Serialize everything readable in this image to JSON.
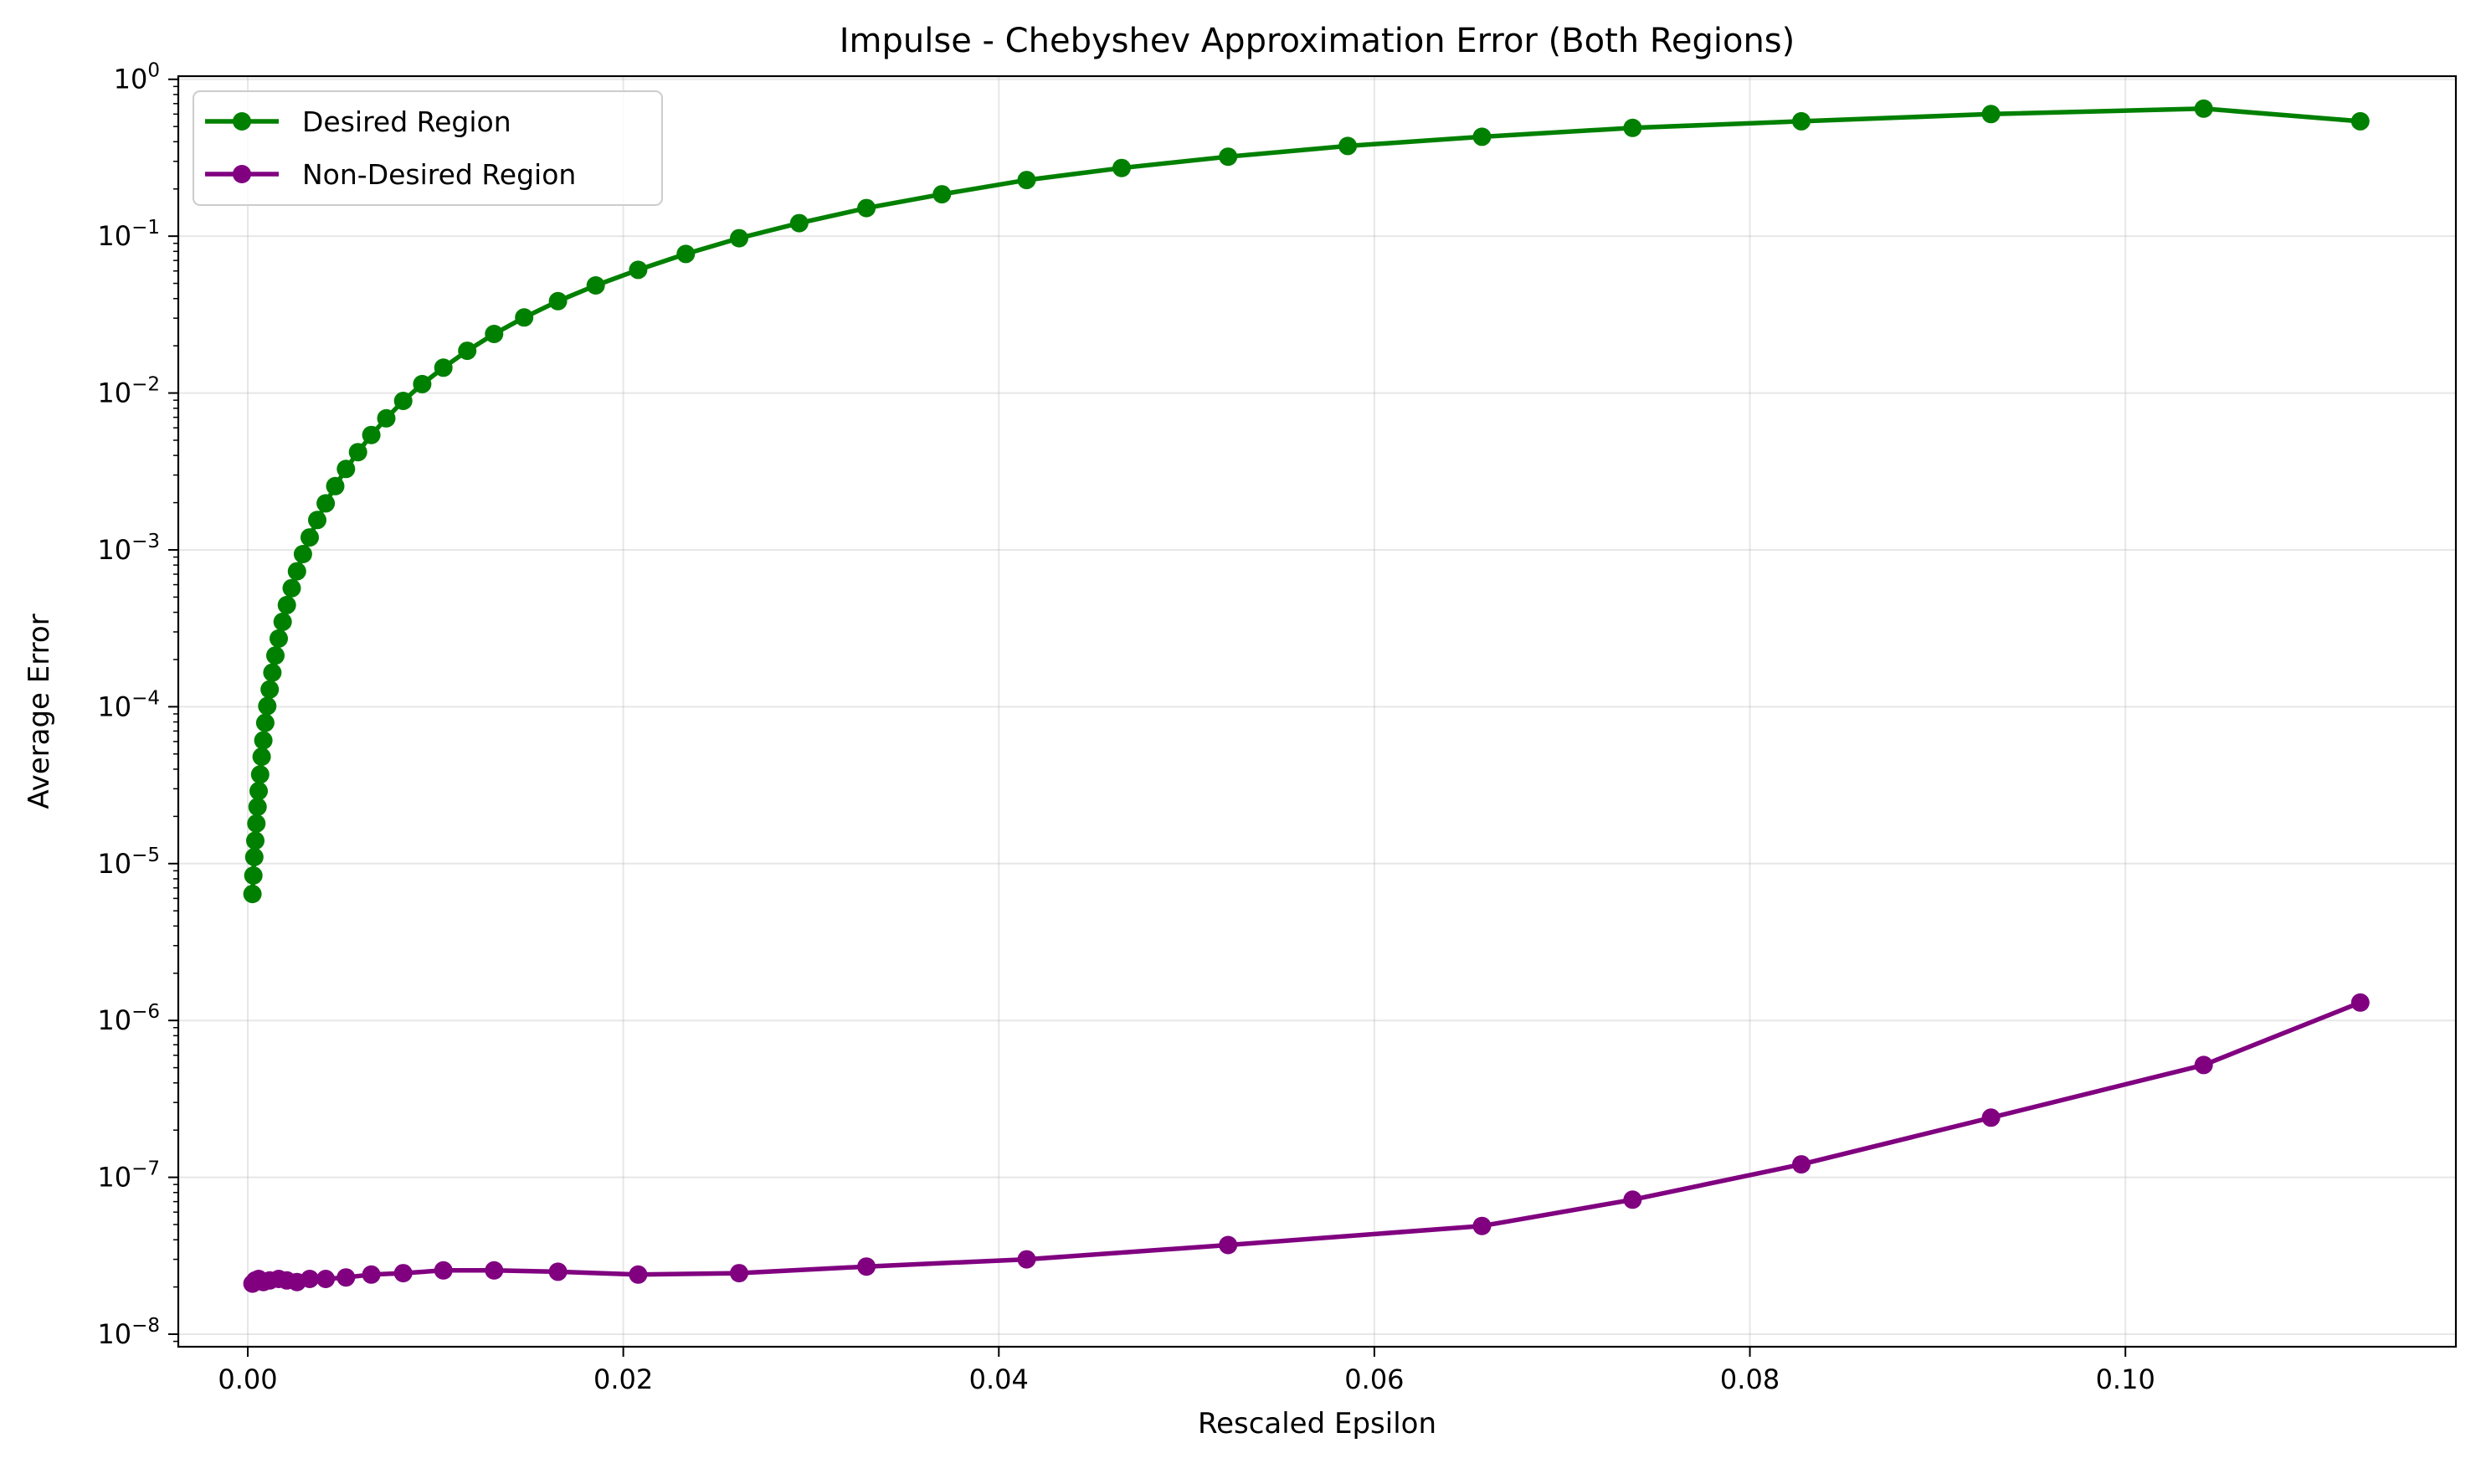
{
  "chart_data": {
    "type": "line",
    "title": "Impulse - Chebyshev Approximation Error (Both Regions)",
    "xlabel": "Rescaled Epsilon",
    "ylabel": "Average Error",
    "xlim": [
      -0.0037,
      0.1176
    ],
    "ylim_log10": [
      -8.08,
      0.02
    ],
    "y_scale": "log",
    "grid": true,
    "legend_position": "top-left",
    "x_ticks": [
      {
        "value": 0.0,
        "label": "0.00"
      },
      {
        "value": 0.02,
        "label": "0.02"
      },
      {
        "value": 0.04,
        "label": "0.04"
      },
      {
        "value": 0.06,
        "label": "0.06"
      },
      {
        "value": 0.08,
        "label": "0.08"
      },
      {
        "value": 0.1,
        "label": "0.10"
      }
    ],
    "y_ticks": [
      {
        "exp": 0,
        "base": "10",
        "sup": "0"
      },
      {
        "exp": -1,
        "base": "10",
        "sup": "−1"
      },
      {
        "exp": -2,
        "base": "10",
        "sup": "−2"
      },
      {
        "exp": -3,
        "base": "10",
        "sup": "−3"
      },
      {
        "exp": -4,
        "base": "10",
        "sup": "−4"
      },
      {
        "exp": -5,
        "base": "10",
        "sup": "−5"
      },
      {
        "exp": -6,
        "base": "10",
        "sup": "−6"
      },
      {
        "exp": -7,
        "base": "10",
        "sup": "−7"
      },
      {
        "exp": -8,
        "base": "10",
        "sup": "−8"
      }
    ],
    "series": [
      {
        "name": "Desired Region",
        "color": "#008000",
        "points": [
          [
            0.00025,
            6.4e-06
          ],
          [
            0.0003,
            8.4e-06
          ],
          [
            0.00035,
            1.1e-05
          ],
          [
            0.0004,
            1.4e-05
          ],
          [
            0.00046,
            1.8e-05
          ],
          [
            0.00052,
            2.3e-05
          ],
          [
            0.00058,
            2.9e-05
          ],
          [
            0.00066,
            3.7e-05
          ],
          [
            0.00074,
            4.8e-05
          ],
          [
            0.00083,
            6.1e-05
          ],
          [
            0.00093,
            7.9e-05
          ],
          [
            0.00104,
            0.000101
          ],
          [
            0.00117,
            0.000129
          ],
          [
            0.00131,
            0.000165
          ],
          [
            0.00147,
            0.000212
          ],
          [
            0.00165,
            0.000272
          ],
          [
            0.00186,
            0.000348
          ],
          [
            0.00208,
            0.000445
          ],
          [
            0.00234,
            0.00057
          ],
          [
            0.00262,
            0.00073
          ],
          [
            0.00294,
            0.00094
          ],
          [
            0.0033,
            0.0012
          ],
          [
            0.0037,
            0.00155
          ],
          [
            0.00415,
            0.00198
          ],
          [
            0.00466,
            0.00255
          ],
          [
            0.00523,
            0.00328
          ],
          [
            0.00587,
            0.0042
          ],
          [
            0.00658,
            0.0054
          ],
          [
            0.00738,
            0.0069
          ],
          [
            0.00828,
            0.0089
          ],
          [
            0.00929,
            0.0114
          ],
          [
            0.01042,
            0.0145
          ],
          [
            0.01169,
            0.0186
          ],
          [
            0.01312,
            0.0238
          ],
          [
            0.01472,
            0.0303
          ],
          [
            0.01652,
            0.0385
          ],
          [
            0.01853,
            0.0485
          ],
          [
            0.02079,
            0.061
          ],
          [
            0.02333,
            0.077
          ],
          [
            0.02617,
            0.097
          ],
          [
            0.02937,
            0.121
          ],
          [
            0.03295,
            0.151
          ],
          [
            0.03697,
            0.185
          ],
          [
            0.04148,
            0.228
          ],
          [
            0.04654,
            0.272
          ],
          [
            0.05221,
            0.321
          ],
          [
            0.05858,
            0.376
          ],
          [
            0.06573,
            0.43
          ],
          [
            0.07375,
            0.49
          ],
          [
            0.08274,
            0.54
          ],
          [
            0.09284,
            0.6
          ],
          [
            0.10417,
            0.65
          ],
          [
            0.11251,
            0.54
          ]
        ]
      },
      {
        "name": "Non-Desired Region",
        "color": "#800080",
        "points": [
          [
            0.00025,
            2.1e-08
          ],
          [
            0.0004,
            2.2e-08
          ],
          [
            0.00058,
            2.25e-08
          ],
          [
            0.00083,
            2.15e-08
          ],
          [
            0.00117,
            2.2e-08
          ],
          [
            0.00165,
            2.25e-08
          ],
          [
            0.00208,
            2.2e-08
          ],
          [
            0.00262,
            2.15e-08
          ],
          [
            0.0033,
            2.25e-08
          ],
          [
            0.00415,
            2.25e-08
          ],
          [
            0.00523,
            2.3e-08
          ],
          [
            0.00658,
            2.4e-08
          ],
          [
            0.00828,
            2.45e-08
          ],
          [
            0.01042,
            2.55e-08
          ],
          [
            0.01312,
            2.55e-08
          ],
          [
            0.01652,
            2.5e-08
          ],
          [
            0.02079,
            2.4e-08
          ],
          [
            0.02617,
            2.45e-08
          ],
          [
            0.03295,
            2.7e-08
          ],
          [
            0.04148,
            3e-08
          ],
          [
            0.05221,
            3.7e-08
          ],
          [
            0.06573,
            4.9e-08
          ],
          [
            0.07375,
            7.2e-08
          ],
          [
            0.08274,
            1.21e-07
          ],
          [
            0.09284,
            2.4e-07
          ],
          [
            0.10417,
            5.2e-07
          ],
          [
            0.11251,
            1.3e-06
          ]
        ]
      }
    ]
  }
}
